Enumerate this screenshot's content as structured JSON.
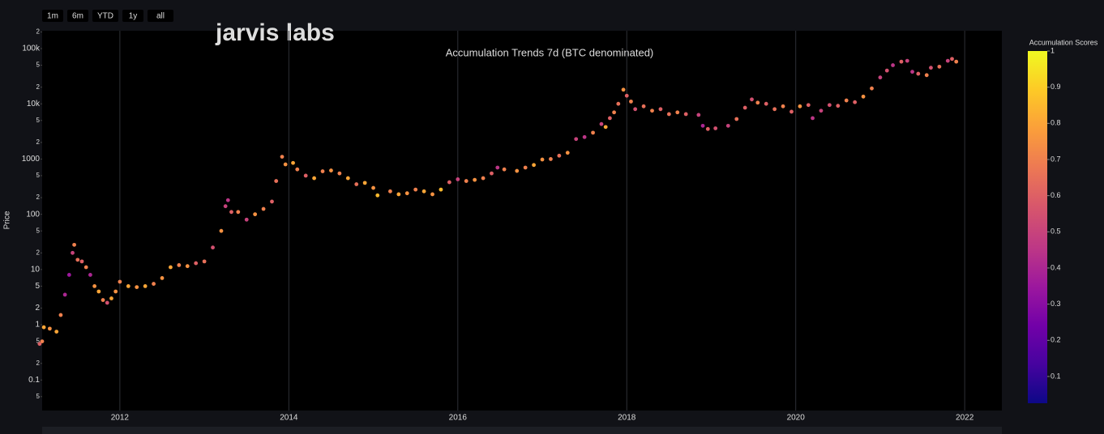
{
  "range_buttons": [
    "1m",
    "6m",
    "YTD",
    "1y",
    "all"
  ],
  "logo": "jarvis labs",
  "chart_data": {
    "type": "scatter",
    "title": "Accumulation Trends 7d (BTC denominated)",
    "y_label": "Price",
    "log_y": true,
    "grid": true,
    "colorscale": "plasma",
    "colorbar": {
      "title": "Accumulation Scores",
      "range": [
        0.026,
        1
      ],
      "ticks": [
        0.1,
        0.2,
        0.3,
        0.4,
        0.5,
        0.6,
        0.7,
        0.8,
        0.9,
        1
      ]
    },
    "xlim": [
      2011.08,
      2022.44
    ],
    "xticks": [
      2012,
      2014,
      2016,
      2018,
      2020,
      2022
    ],
    "ylim": [
      0.028,
      210000
    ],
    "yticks": [
      {
        "value": 200000,
        "label": "2"
      },
      {
        "value": 100000,
        "label": "100k"
      },
      {
        "value": 50000,
        "label": "5"
      },
      {
        "value": 20000,
        "label": "2"
      },
      {
        "value": 10000,
        "label": "10k"
      },
      {
        "value": 5000,
        "label": "5"
      },
      {
        "value": 2000,
        "label": "2"
      },
      1000,
      {
        "value": 500,
        "label": "5"
      },
      {
        "value": 200,
        "label": "2"
      },
      100,
      {
        "value": 50,
        "label": "5"
      },
      {
        "value": 20,
        "label": "2"
      },
      10,
      5,
      2,
      1,
      {
        "value": 0.5,
        "label": "5"
      },
      {
        "value": 0.2,
        "label": "2"
      },
      0.1,
      {
        "value": 0.05,
        "label": "5"
      }
    ],
    "x": [
      2011.05,
      2011.08,
      2011.1,
      2011.17,
      2011.25,
      2011.3,
      2011.35,
      2011.4,
      2011.44,
      2011.46,
      2011.5,
      2011.55,
      2011.6,
      2011.65,
      2011.7,
      2011.75,
      2011.8,
      2011.85,
      2011.9,
      2011.95,
      2012.0,
      2012.1,
      2012.2,
      2012.3,
      2012.4,
      2012.5,
      2012.6,
      2012.7,
      2012.8,
      2012.9,
      2013.0,
      2013.1,
      2013.2,
      2013.25,
      2013.28,
      2013.32,
      2013.4,
      2013.5,
      2013.6,
      2013.7,
      2013.8,
      2013.85,
      2013.92,
      2013.96,
      2014.05,
      2014.1,
      2014.2,
      2014.3,
      2014.4,
      2014.5,
      2014.6,
      2014.7,
      2014.8,
      2014.9,
      2015.0,
      2015.05,
      2015.2,
      2015.3,
      2015.4,
      2015.5,
      2015.6,
      2015.7,
      2015.8,
      2015.9,
      2016.0,
      2016.1,
      2016.2,
      2016.3,
      2016.4,
      2016.47,
      2016.55,
      2016.7,
      2016.8,
      2016.9,
      2017.0,
      2017.1,
      2017.2,
      2017.3,
      2017.4,
      2017.5,
      2017.6,
      2017.7,
      2017.75,
      2017.8,
      2017.85,
      2017.9,
      2017.96,
      2018.0,
      2018.05,
      2018.1,
      2018.2,
      2018.3,
      2018.4,
      2018.5,
      2018.6,
      2018.7,
      2018.85,
      2018.9,
      2018.96,
      2019.05,
      2019.2,
      2019.3,
      2019.4,
      2019.48,
      2019.55,
      2019.65,
      2019.75,
      2019.85,
      2019.95,
      2020.05,
      2020.15,
      2020.2,
      2020.3,
      2020.4,
      2020.5,
      2020.6,
      2020.7,
      2020.8,
      2020.9,
      2021.0,
      2021.08,
      2021.15,
      2021.25,
      2021.32,
      2021.38,
      2021.45,
      2021.55,
      2021.6,
      2021.7,
      2021.8,
      2021.85,
      2021.9
    ],
    "values": [
      0.45,
      0.5,
      0.9,
      0.85,
      0.75,
      1.5,
      3.5,
      8,
      20,
      28,
      15,
      14,
      11,
      8,
      5,
      4,
      2.8,
      2.5,
      3,
      4,
      6,
      5,
      4.8,
      5,
      5.5,
      7,
      11,
      12,
      11.5,
      13,
      14,
      25,
      50,
      140,
      180,
      110,
      110,
      80,
      100,
      125,
      170,
      400,
      1100,
      800,
      850,
      650,
      500,
      450,
      600,
      620,
      550,
      450,
      350,
      370,
      300,
      220,
      260,
      230,
      240,
      280,
      260,
      230,
      280,
      380,
      430,
      400,
      420,
      450,
      550,
      700,
      650,
      610,
      700,
      780,
      980,
      1000,
      1150,
      1300,
      2300,
      2500,
      3000,
      4300,
      3800,
      5500,
      7000,
      10000,
      18000,
      14000,
      11000,
      8000,
      9000,
      7500,
      8000,
      6500,
      7000,
      6500,
      6300,
      4000,
      3500,
      3600,
      4000,
      5300,
      8500,
      12000,
      10500,
      10000,
      8000,
      9000,
      7200,
      9000,
      9500,
      5500,
      7500,
      9500,
      9200,
      11500,
      10700,
      13500,
      19000,
      30000,
      40000,
      50000,
      58000,
      60000,
      38000,
      35000,
      33000,
      45000,
      47000,
      60000,
      65000,
      58000
    ],
    "scores": [
      0.6,
      0.7,
      0.8,
      0.75,
      0.8,
      0.7,
      0.4,
      0.35,
      0.5,
      0.7,
      0.65,
      0.6,
      0.7,
      0.4,
      0.75,
      0.8,
      0.7,
      0.55,
      0.8,
      0.75,
      0.7,
      0.8,
      0.75,
      0.8,
      0.7,
      0.75,
      0.8,
      0.7,
      0.75,
      0.6,
      0.65,
      0.55,
      0.75,
      0.5,
      0.45,
      0.6,
      0.7,
      0.5,
      0.75,
      0.7,
      0.6,
      0.65,
      0.7,
      0.75,
      0.8,
      0.7,
      0.6,
      0.8,
      0.7,
      0.75,
      0.7,
      0.8,
      0.65,
      0.8,
      0.75,
      0.85,
      0.7,
      0.8,
      0.75,
      0.7,
      0.8,
      0.75,
      0.85,
      0.6,
      0.5,
      0.7,
      0.75,
      0.7,
      0.6,
      0.45,
      0.7,
      0.75,
      0.7,
      0.8,
      0.75,
      0.7,
      0.65,
      0.75,
      0.5,
      0.45,
      0.7,
      0.5,
      0.8,
      0.6,
      0.7,
      0.65,
      0.75,
      0.6,
      0.7,
      0.55,
      0.65,
      0.7,
      0.6,
      0.65,
      0.7,
      0.6,
      0.5,
      0.4,
      0.6,
      0.55,
      0.5,
      0.65,
      0.6,
      0.55,
      0.7,
      0.6,
      0.65,
      0.7,
      0.6,
      0.75,
      0.6,
      0.45,
      0.5,
      0.55,
      0.6,
      0.7,
      0.6,
      0.75,
      0.7,
      0.5,
      0.55,
      0.45,
      0.6,
      0.5,
      0.45,
      0.6,
      0.7,
      0.55,
      0.65,
      0.5,
      0.6,
      0.7
    ]
  }
}
